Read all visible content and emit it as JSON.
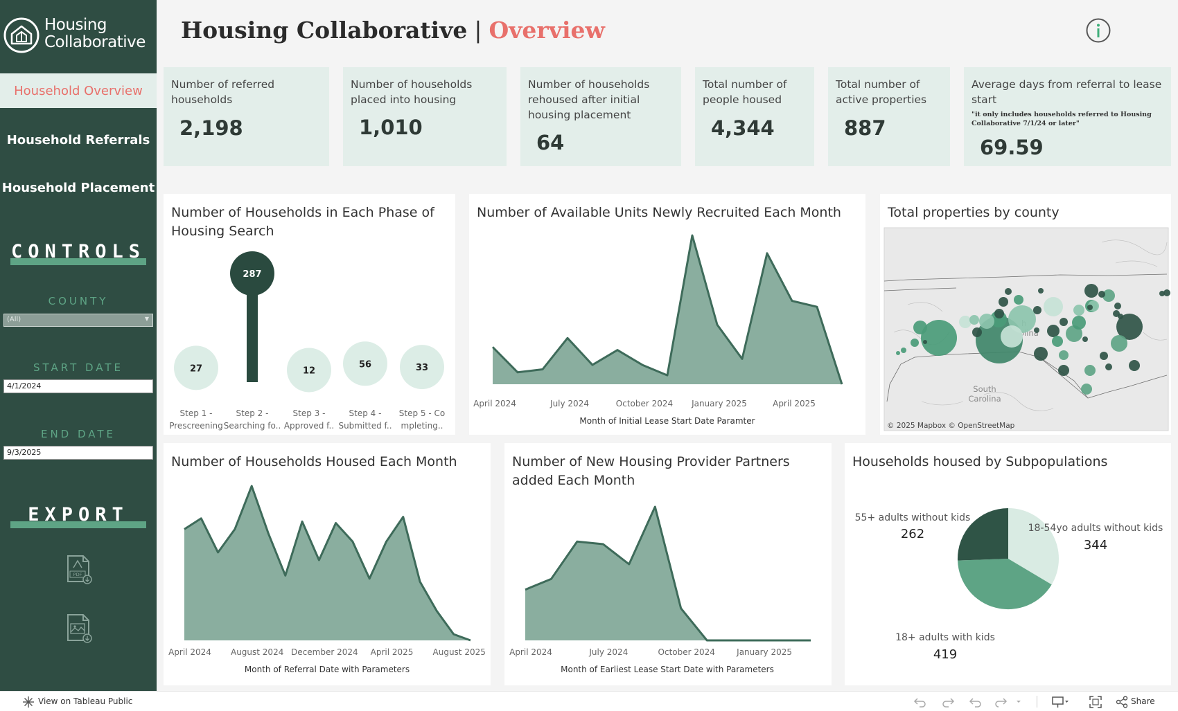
{
  "brand": {
    "logo_line1": "Housing",
    "logo_line2": "Collaborative"
  },
  "header": {
    "title": "Housing Collaborative",
    "separator": "|",
    "subtitle": "Overview"
  },
  "nav": {
    "household_overview": "Household Overview",
    "household_referrals": "Household Referrals",
    "household_placement": "Household Placement"
  },
  "controls": {
    "title": "CONTROLS",
    "county_label": "COUNTY",
    "county_value": "(All)",
    "start_label": "START DATE",
    "start_value": "4/1/2024",
    "end_label": "END DATE",
    "end_value": "9/3/2025"
  },
  "export": {
    "title": "EXPORT",
    "pdf_icon_text": "PDF"
  },
  "kpis": [
    {
      "label": "Number of referred households",
      "value": "2,198"
    },
    {
      "label": "Number of households placed into housing",
      "value": "1,010"
    },
    {
      "label": "Number of households rehoused after initial housing placement",
      "value": "64"
    },
    {
      "label": "Total number of people housed",
      "value": "4,344"
    },
    {
      "label": "Total number of active properties",
      "value": "887"
    },
    {
      "label": "Average days from referral to lease start",
      "note": "\"it only includes households referred to Housing Collaborative 7/1/24 or later\"",
      "value": "69.59"
    }
  ],
  "panels": {
    "phase": "Number of Households in Each Phase of Housing Search",
    "units": "Number of Available Units Newly Recruited Each Month",
    "map": "Total properties by county",
    "housed": "Number of Households Housed Each Month",
    "partners": "Number of New Housing Provider Partners added Each Month",
    "subpop": "Households housed by Subpopulations"
  },
  "map": {
    "state_label_1": "South",
    "state_label_2": "Carolina",
    "partial_label_1": "h",
    "partial_label_2": "olina",
    "attribution": "© 2025 Mapbox  © OpenStreetMap"
  },
  "footer": {
    "view_link": "View on Tableau Public",
    "share": "Share"
  },
  "chart_data": [
    {
      "id": "phase",
      "type": "scatter",
      "title": "Number of Households in Each Phase of Housing Search",
      "categories": [
        "Step 1 - Prescreening",
        "Step 2 - Searching fo..",
        "Step 3 - Approved f..",
        "Step 4 - Submitted f..",
        "Step 5 - Co mpleting.."
      ],
      "category_lines": [
        [
          "Step 1 -",
          "Prescreening"
        ],
        [
          "Step 2 -",
          "Searching fo.."
        ],
        [
          "Step 3 -",
          "Approved f.."
        ],
        [
          "Step 4 -",
          "Submitted f.."
        ],
        [
          "Step 5 - Co",
          "mpleting.."
        ]
      ],
      "values": [
        27,
        287,
        12,
        56,
        33
      ],
      "value_labels": [
        "27",
        "287",
        "12",
        "56",
        "33"
      ],
      "highlight_index": 1,
      "colors": {
        "highlight": "#2a4a3f",
        "base": "#dcede6"
      }
    },
    {
      "id": "units",
      "type": "area",
      "title": "Number of Available Units Newly Recruited Each Month",
      "x": [
        "Apr 2024",
        "May 2024",
        "Jun 2024",
        "Jul 2024",
        "Aug 2024",
        "Sep 2024",
        "Oct 2024",
        "Nov 2024",
        "Dec 2024",
        "Jan 2025",
        "Feb 2025",
        "Mar 2025",
        "Apr 2025",
        "May 2025",
        "Jun 2025"
      ],
      "values": [
        25,
        8,
        10,
        31,
        13,
        23,
        13,
        6,
        100,
        40,
        17,
        88,
        56,
        52,
        0
      ],
      "ylim": [
        0,
        100
      ],
      "tick_labels": [
        "April 2024",
        "July 2024",
        "October 2024",
        "January 2025",
        "April 2025"
      ],
      "tick_indices": [
        0,
        3,
        6,
        9,
        12
      ],
      "xlabel": "Month of Initial Lease Start Date Paramter",
      "colors": {
        "fill": "#8aae9f",
        "line": "#3e6b5a"
      }
    },
    {
      "id": "housed",
      "type": "area",
      "title": "Number of Households Housed Each Month",
      "x": [
        "Apr 2024",
        "May 2024",
        "Jun 2024",
        "Jul 2024",
        "Aug 2024",
        "Sep 2024",
        "Oct 2024",
        "Nov 2024",
        "Dec 2024",
        "Jan 2025",
        "Feb 2025",
        "Mar 2025",
        "Apr 2025",
        "May 2025",
        "Jun 2025",
        "Jul 2025",
        "Aug 2025",
        "Sep 2025"
      ],
      "values": [
        72,
        79,
        57,
        72,
        100,
        69,
        42,
        77,
        52,
        76,
        64,
        40,
        64,
        80,
        38,
        19,
        4,
        0
      ],
      "ylim": [
        0,
        100
      ],
      "tick_labels": [
        "April 2024",
        "August 2024",
        "December 2024",
        "April 2025",
        "August 2025"
      ],
      "tick_indices": [
        0,
        4,
        8,
        12,
        16
      ],
      "xlabel": "Month of Referral Date with Parameters",
      "colors": {
        "fill": "#8aae9f",
        "line": "#3e6b5a"
      }
    },
    {
      "id": "partners",
      "type": "area",
      "title": "Number of New Housing Provider Partners added Each Month",
      "x": [
        "Apr 2024",
        "May 2024",
        "Jun 2024",
        "Jul 2024",
        "Aug 2024",
        "Sep 2024",
        "Oct 2024",
        "Nov 2024",
        "Dec 2024",
        "Jan 2025",
        "Feb 2025",
        "Mar 2025"
      ],
      "values": [
        38,
        46,
        74,
        72,
        57,
        100,
        24,
        0,
        0,
        0,
        0,
        0
      ],
      "ylim": [
        0,
        100
      ],
      "tick_labels": [
        "April 2024",
        "July 2024",
        "October 2024",
        "January 2025"
      ],
      "tick_indices": [
        0,
        3,
        6,
        9
      ],
      "xlabel": "Month of Earliest Lease Start Date with Parameters",
      "colors": {
        "fill": "#8aae9f",
        "line": "#3e6b5a"
      }
    },
    {
      "id": "subpop",
      "type": "pie",
      "title": "Households housed by Subpopulations",
      "slices": [
        {
          "label": "18-54yo adults without kids",
          "value": 344,
          "color": "#d9ebe3"
        },
        {
          "label": "18+ adults with kids",
          "value": 419,
          "color": "#5ea485"
        },
        {
          "label": "55+ adults without kids",
          "value": 262,
          "color": "#2f5446"
        }
      ]
    }
  ]
}
